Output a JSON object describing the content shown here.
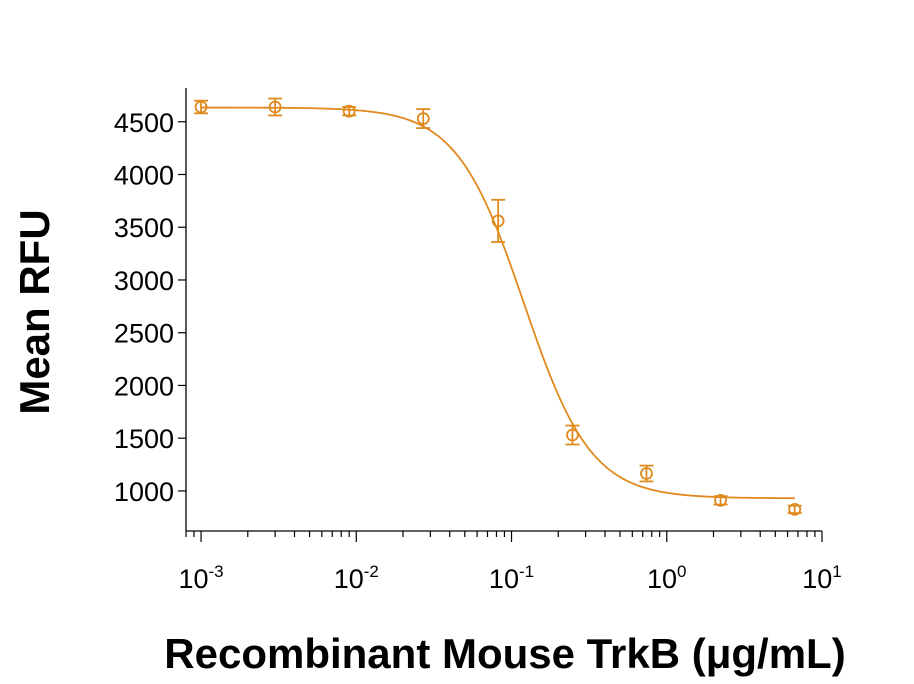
{
  "chart_data": {
    "type": "scatter",
    "xlabel": "Recombinant Mouse TrkB (μg/mL)",
    "ylabel": "Mean RFU",
    "x_scale": "log",
    "xlim": [
      0.0008,
      10
    ],
    "ylim": [
      620,
      4820
    ],
    "x_ticks": [
      {
        "base": "10",
        "exp": "-3",
        "value": 0.001
      },
      {
        "base": "10",
        "exp": "-2",
        "value": 0.01
      },
      {
        "base": "10",
        "exp": "-1",
        "value": 0.1
      },
      {
        "base": "10",
        "exp": "0",
        "value": 1
      },
      {
        "base": "10",
        "exp": "1",
        "value": 10
      }
    ],
    "y_ticks": [
      1000,
      1500,
      2000,
      2500,
      3000,
      3500,
      4000,
      4500
    ],
    "y_tick_labels": [
      "1000",
      "1500",
      "2000",
      "2500",
      "3000",
      "3500",
      "4000",
      "4500"
    ],
    "color": "#E08A1E",
    "series": [
      {
        "x": [
          0.001,
          0.003,
          0.009,
          0.027,
          0.082,
          0.247,
          0.74,
          2.22,
          6.67
        ],
        "y": [
          4640,
          4640,
          4600,
          4530,
          3560,
          1530,
          1165,
          910,
          825
        ],
        "err": [
          60,
          80,
          40,
          90,
          200,
          90,
          75,
          40,
          35
        ]
      }
    ],
    "fit": {
      "bottom": 930,
      "top": 4635,
      "ec50": 0.12,
      "hill": 2.0,
      "x_range": [
        0.001,
        6.67
      ]
    },
    "grid": false,
    "legend": "none"
  }
}
